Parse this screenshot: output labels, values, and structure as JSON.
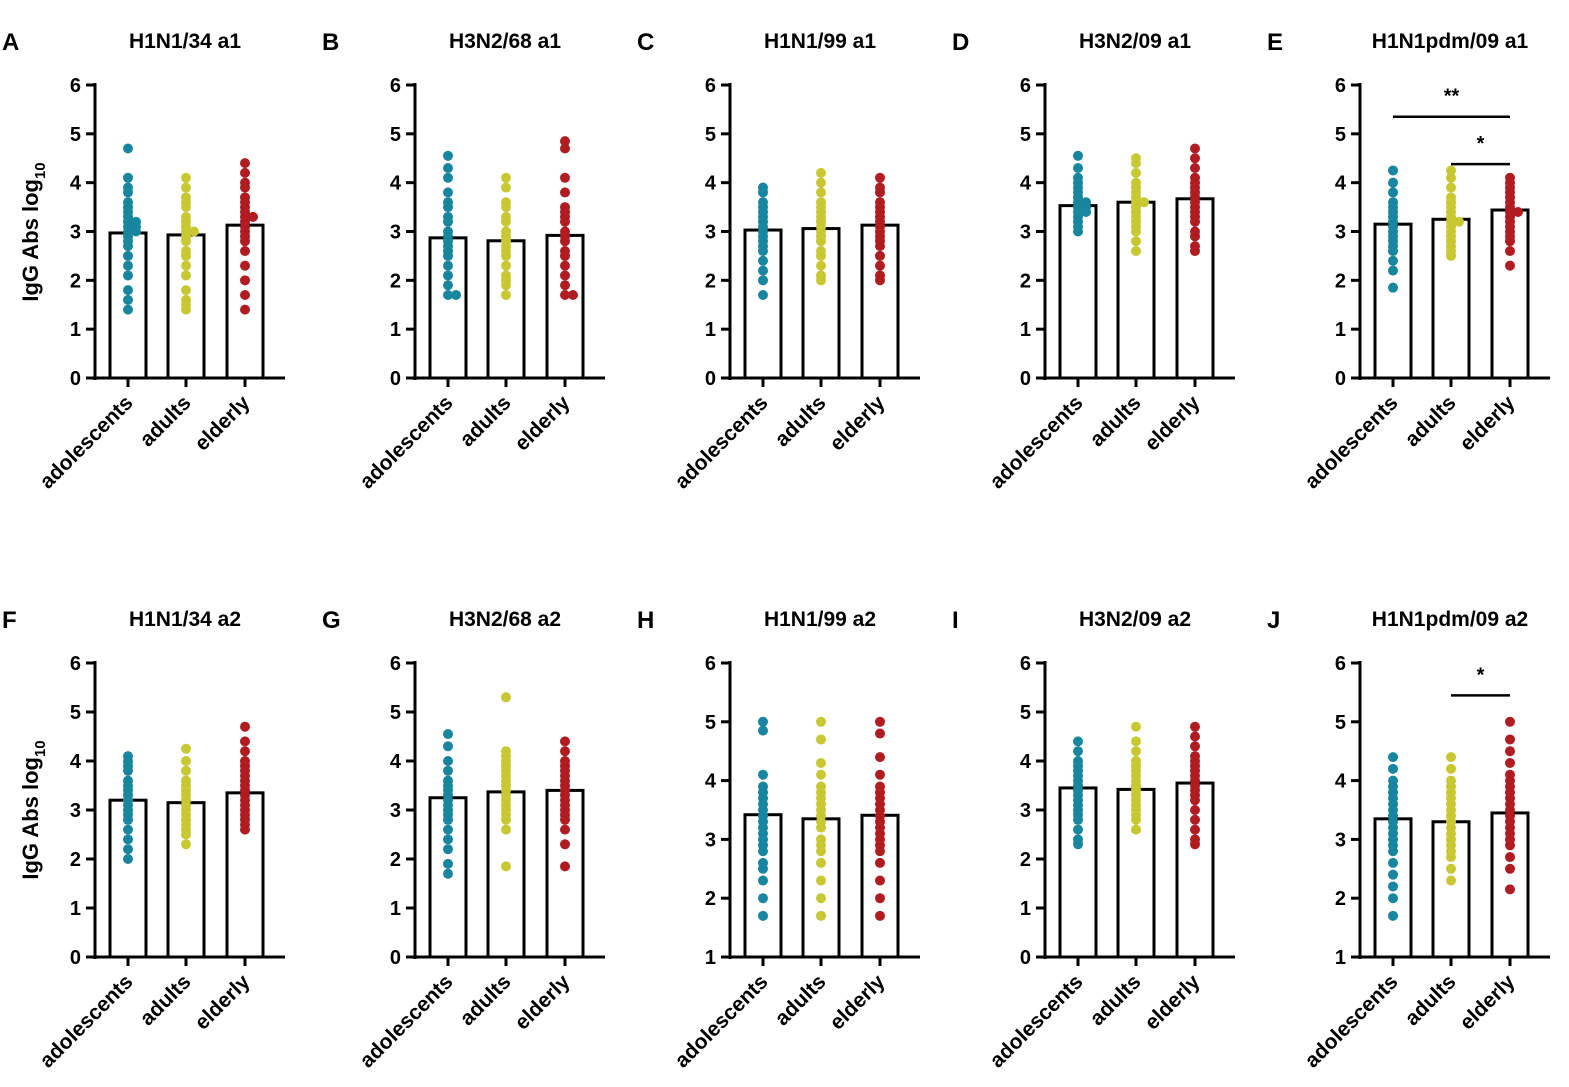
{
  "figure": {
    "ylabel": "IgG Abs log",
    "ylabel_sub": "10",
    "group_colors": {
      "adolescents": "#17869e",
      "adults": "#c8c832",
      "elderly": "#b01c22"
    }
  },
  "chart_data": [
    {
      "type": "bar",
      "panel": "A",
      "title": "H1N1/34 a1",
      "categories": [
        "adolescents",
        "adults",
        "elderly"
      ],
      "values": [
        2.97,
        2.93,
        3.13
      ],
      "ylim": [
        0,
        6
      ],
      "yticks": [
        0,
        1,
        2,
        3,
        4,
        5,
        6
      ],
      "points": [
        [
          4.7,
          4.1,
          3.9,
          3.8,
          3.6,
          3.5,
          3.4,
          3.3,
          3.2,
          3.2,
          3.1,
          3.1,
          3.0,
          3.0,
          2.9,
          2.8,
          2.7,
          2.5,
          2.3,
          2.1,
          1.8,
          1.6,
          1.4
        ],
        [
          4.1,
          3.9,
          3.7,
          3.6,
          3.5,
          3.3,
          3.2,
          3.1,
          3.0,
          3.0,
          2.9,
          2.8,
          2.6,
          2.5,
          2.3,
          2.1,
          1.8,
          1.6,
          1.5,
          1.4
        ],
        [
          4.4,
          4.2,
          4.0,
          3.9,
          3.7,
          3.6,
          3.5,
          3.4,
          3.3,
          3.3,
          3.2,
          3.1,
          3.0,
          2.9,
          2.8,
          2.6,
          2.3,
          2.0,
          1.7,
          1.4
        ]
      ],
      "significance": []
    },
    {
      "type": "bar",
      "panel": "B",
      "title": "H3N2/68 a1",
      "categories": [
        "adolescents",
        "adults",
        "elderly"
      ],
      "values": [
        2.87,
        2.81,
        2.92
      ],
      "ylim": [
        0,
        6
      ],
      "yticks": [
        0,
        1,
        2,
        3,
        4,
        5,
        6
      ],
      "points": [
        [
          4.55,
          4.3,
          4.1,
          3.8,
          3.6,
          3.5,
          3.3,
          3.2,
          3.0,
          2.9,
          2.8,
          2.7,
          2.6,
          2.5,
          2.3,
          2.1,
          1.9,
          1.7,
          1.7
        ],
        [
          4.1,
          3.9,
          3.6,
          3.5,
          3.3,
          3.2,
          3.0,
          2.9,
          2.8,
          2.7,
          2.6,
          2.5,
          2.3,
          2.1,
          2.0,
          1.9,
          1.7
        ],
        [
          4.85,
          4.7,
          4.1,
          3.8,
          3.5,
          3.4,
          3.3,
          3.2,
          3.0,
          2.9,
          2.8,
          2.6,
          2.5,
          2.3,
          2.1,
          1.9,
          1.7,
          1.7
        ]
      ],
      "significance": []
    },
    {
      "type": "bar",
      "panel": "C",
      "title": "H1N1/99 a1",
      "categories": [
        "adolescents",
        "adults",
        "elderly"
      ],
      "values": [
        3.03,
        3.06,
        3.13
      ],
      "ylim": [
        0,
        6
      ],
      "yticks": [
        0,
        1,
        2,
        3,
        4,
        5,
        6
      ],
      "points": [
        [
          3.9,
          3.8,
          3.6,
          3.5,
          3.4,
          3.3,
          3.2,
          3.1,
          3.0,
          2.9,
          2.8,
          2.7,
          2.6,
          2.4,
          2.2,
          2.0,
          1.7
        ],
        [
          4.2,
          4.0,
          3.8,
          3.6,
          3.5,
          3.4,
          3.3,
          3.2,
          3.1,
          3.0,
          2.9,
          2.8,
          2.6,
          2.5,
          2.3,
          2.1,
          2.0
        ],
        [
          4.1,
          3.9,
          3.8,
          3.6,
          3.5,
          3.4,
          3.3,
          3.2,
          3.1,
          3.0,
          2.9,
          2.8,
          2.7,
          2.5,
          2.3,
          2.1,
          2.0
        ]
      ],
      "significance": []
    },
    {
      "type": "bar",
      "panel": "D",
      "title": "H3N2/09 a1",
      "categories": [
        "adolescents",
        "adults",
        "elderly"
      ],
      "values": [
        3.53,
        3.6,
        3.67
      ],
      "ylim": [
        0,
        6
      ],
      "yticks": [
        0,
        1,
        2,
        3,
        4,
        5,
        6
      ],
      "points": [
        [
          4.55,
          4.3,
          4.1,
          4.0,
          3.9,
          3.8,
          3.7,
          3.6,
          3.6,
          3.5,
          3.5,
          3.4,
          3.4,
          3.3,
          3.2,
          3.1,
          3.0
        ],
        [
          4.5,
          4.4,
          4.2,
          4.0,
          3.9,
          3.8,
          3.7,
          3.6,
          3.6,
          3.5,
          3.4,
          3.3,
          3.2,
          3.1,
          3.0,
          2.8,
          2.6
        ],
        [
          4.7,
          4.5,
          4.3,
          4.1,
          4.0,
          3.9,
          3.8,
          3.7,
          3.6,
          3.5,
          3.4,
          3.3,
          3.2,
          3.0,
          2.9,
          2.7,
          2.6
        ]
      ],
      "significance": []
    },
    {
      "type": "bar",
      "panel": "E",
      "title": "H1N1pdm/09 a1",
      "categories": [
        "adolescents",
        "adults",
        "elderly"
      ],
      "values": [
        3.15,
        3.25,
        3.44
      ],
      "ylim": [
        0,
        6
      ],
      "yticks": [
        0,
        1,
        2,
        3,
        4,
        5,
        6
      ],
      "points": [
        [
          4.25,
          4.0,
          3.8,
          3.6,
          3.5,
          3.4,
          3.3,
          3.2,
          3.1,
          3.0,
          2.9,
          2.8,
          2.7,
          2.6,
          2.4,
          2.2,
          1.85
        ],
        [
          4.25,
          4.1,
          3.9,
          3.7,
          3.6,
          3.5,
          3.4,
          3.3,
          3.2,
          3.2,
          3.1,
          3.0,
          2.9,
          2.8,
          2.7,
          2.6,
          2.5
        ],
        [
          4.1,
          4.0,
          3.9,
          3.8,
          3.7,
          3.6,
          3.5,
          3.4,
          3.4,
          3.3,
          3.2,
          3.1,
          3.0,
          2.9,
          2.8,
          2.6,
          2.3
        ]
      ],
      "significance": [
        {
          "from": 0,
          "to": 2,
          "y": 5.35,
          "label": "**"
        },
        {
          "from": 1,
          "to": 2,
          "y": 4.38,
          "label": "*"
        }
      ]
    },
    {
      "type": "bar",
      "panel": "F",
      "title": "H1N1/34 a2",
      "categories": [
        "adolescents",
        "adults",
        "elderly"
      ],
      "values": [
        3.2,
        3.15,
        3.35
      ],
      "ylim": [
        0,
        6
      ],
      "yticks": [
        0,
        1,
        2,
        3,
        4,
        5,
        6
      ],
      "points": [
        [
          4.1,
          4.0,
          3.9,
          3.8,
          3.6,
          3.5,
          3.4,
          3.3,
          3.2,
          3.1,
          3.0,
          2.9,
          2.8,
          2.6,
          2.4,
          2.2,
          2.0
        ],
        [
          4.25,
          4.0,
          3.8,
          3.6,
          3.5,
          3.4,
          3.3,
          3.2,
          3.1,
          3.0,
          2.9,
          2.8,
          2.7,
          2.6,
          2.5,
          2.3
        ],
        [
          4.7,
          4.4,
          4.2,
          4.0,
          3.9,
          3.8,
          3.7,
          3.6,
          3.5,
          3.4,
          3.3,
          3.2,
          3.1,
          3.0,
          2.9,
          2.8,
          2.7,
          2.6
        ]
      ],
      "significance": []
    },
    {
      "type": "bar",
      "panel": "G",
      "title": "H3N2/68 a2",
      "categories": [
        "adolescents",
        "adults",
        "elderly"
      ],
      "values": [
        3.25,
        3.37,
        3.4
      ],
      "ylim": [
        0,
        6
      ],
      "yticks": [
        0,
        1,
        2,
        3,
        4,
        5,
        6
      ],
      "points": [
        [
          4.55,
          4.3,
          4.0,
          3.8,
          3.6,
          3.5,
          3.4,
          3.3,
          3.2,
          3.1,
          3.0,
          2.9,
          2.8,
          2.6,
          2.4,
          2.2,
          1.9,
          1.7
        ],
        [
          5.3,
          4.2,
          4.1,
          4.0,
          3.9,
          3.8,
          3.7,
          3.6,
          3.5,
          3.4,
          3.3,
          3.2,
          3.1,
          3.0,
          2.9,
          2.8,
          2.6,
          1.85
        ],
        [
          4.4,
          4.2,
          4.0,
          3.9,
          3.8,
          3.7,
          3.6,
          3.5,
          3.4,
          3.3,
          3.2,
          3.1,
          3.0,
          2.9,
          2.8,
          2.6,
          2.3,
          1.85
        ]
      ],
      "significance": []
    },
    {
      "type": "bar",
      "panel": "H",
      "title": "H1N1/99 a2",
      "categories": [
        "adolescents",
        "adults",
        "elderly"
      ],
      "values": [
        3.42,
        3.35,
        3.41
      ],
      "ylim": [
        1,
        6
      ],
      "yticks": [
        1,
        2,
        3,
        4,
        5,
        6
      ],
      "points": [
        [
          5.0,
          4.85,
          4.1,
          3.9,
          3.8,
          3.7,
          3.6,
          3.5,
          3.4,
          3.3,
          3.2,
          3.1,
          3.0,
          2.9,
          2.8,
          2.6,
          2.5,
          2.3,
          2.0,
          1.7
        ],
        [
          5.0,
          4.7,
          4.3,
          4.1,
          3.9,
          3.8,
          3.7,
          3.6,
          3.5,
          3.4,
          3.3,
          3.2,
          3.0,
          2.9,
          2.8,
          2.6,
          2.3,
          2.0,
          1.7
        ],
        [
          5.0,
          4.8,
          4.4,
          4.1,
          3.9,
          3.8,
          3.7,
          3.6,
          3.5,
          3.4,
          3.3,
          3.2,
          3.1,
          3.0,
          2.9,
          2.8,
          2.6,
          2.3,
          2.0,
          1.7
        ]
      ],
      "significance": []
    },
    {
      "type": "bar",
      "panel": "I",
      "title": "H3N2/09 a2",
      "categories": [
        "adolescents",
        "adults",
        "elderly"
      ],
      "values": [
        3.45,
        3.42,
        3.55
      ],
      "ylim": [
        0,
        6
      ],
      "yticks": [
        0,
        1,
        2,
        3,
        4,
        5,
        6
      ],
      "points": [
        [
          4.4,
          4.2,
          4.0,
          3.9,
          3.8,
          3.7,
          3.6,
          3.5,
          3.4,
          3.3,
          3.2,
          3.1,
          3.0,
          2.9,
          2.8,
          2.6,
          2.4,
          2.3
        ],
        [
          4.7,
          4.4,
          4.2,
          4.0,
          3.9,
          3.8,
          3.7,
          3.6,
          3.5,
          3.4,
          3.3,
          3.2,
          3.1,
          3.0,
          2.9,
          2.8,
          2.6
        ],
        [
          4.7,
          4.5,
          4.3,
          4.1,
          4.0,
          3.9,
          3.8,
          3.7,
          3.6,
          3.5,
          3.4,
          3.3,
          3.2,
          3.0,
          2.8,
          2.6,
          2.4,
          2.3
        ]
      ],
      "significance": []
    },
    {
      "type": "bar",
      "panel": "J",
      "title": "H1N1pdm/09 a2",
      "categories": [
        "adolescents",
        "adults",
        "elderly"
      ],
      "values": [
        3.35,
        3.3,
        3.45
      ],
      "ylim": [
        1,
        6
      ],
      "yticks": [
        1,
        2,
        3,
        4,
        5,
        6
      ],
      "points": [
        [
          4.4,
          4.2,
          4.0,
          3.9,
          3.8,
          3.7,
          3.6,
          3.5,
          3.4,
          3.3,
          3.2,
          3.1,
          3.0,
          2.9,
          2.8,
          2.6,
          2.4,
          2.2,
          2.0,
          1.7
        ],
        [
          4.4,
          4.2,
          4.0,
          3.9,
          3.8,
          3.7,
          3.6,
          3.5,
          3.4,
          3.3,
          3.2,
          3.1,
          3.0,
          2.9,
          2.8,
          2.7,
          2.5,
          2.3
        ],
        [
          5.0,
          4.7,
          4.5,
          4.3,
          4.1,
          4.0,
          3.9,
          3.8,
          3.7,
          3.6,
          3.5,
          3.4,
          3.3,
          3.2,
          3.1,
          3.0,
          2.9,
          2.7,
          2.5,
          2.15
        ]
      ],
      "significance": [
        {
          "from": 1,
          "to": 2,
          "y": 5.45,
          "label": "*"
        }
      ]
    }
  ]
}
